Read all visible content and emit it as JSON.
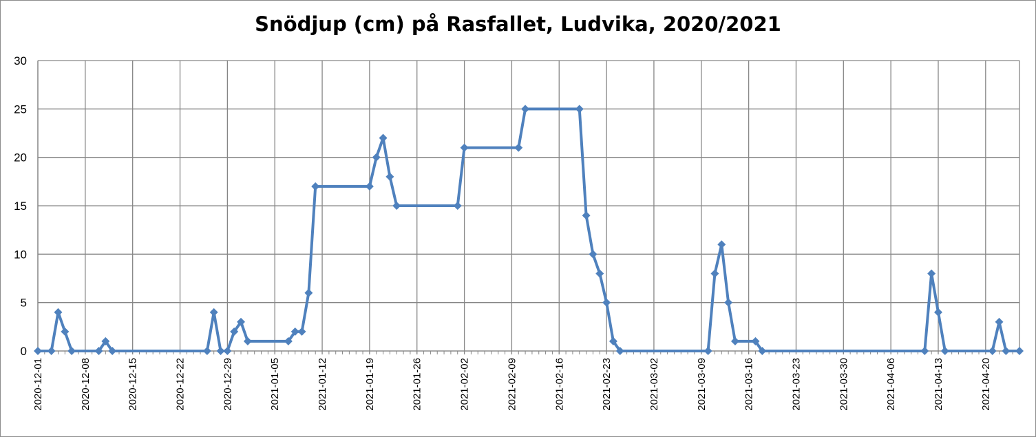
{
  "chart_data": {
    "type": "line",
    "title": "Snödjup (cm) på Rasfallet, Ludvika, 2020/2021",
    "xlabel": "",
    "ylabel": "",
    "ylim": [
      0,
      30
    ],
    "yticks": [
      0,
      5,
      10,
      15,
      20,
      25,
      30
    ],
    "xlim": [
      "2020-12-01",
      "2021-04-25"
    ],
    "xtick_labels": [
      "2020-12-01",
      "2020-12-08",
      "2020-12-15",
      "2020-12-22",
      "2020-12-29",
      "2021-01-05",
      "2021-01-12",
      "2021-01-19",
      "2021-01-26",
      "2021-02-02",
      "2021-02-09",
      "2021-02-16",
      "2021-02-23",
      "2021-03-02",
      "2021-03-09",
      "2021-03-16",
      "2021-03-23",
      "2021-03-30",
      "2021-04-06",
      "2021-04-13",
      "2021-04-20"
    ],
    "grid": true,
    "legend": "none",
    "series_color": "#4F81BD",
    "points": [
      [
        "2020-12-01",
        0
      ],
      [
        "2020-12-03",
        0
      ],
      [
        "2020-12-04",
        4
      ],
      [
        "2020-12-05",
        2
      ],
      [
        "2020-12-06",
        0
      ],
      [
        "2020-12-10",
        0
      ],
      [
        "2020-12-11",
        1
      ],
      [
        "2020-12-12",
        0
      ],
      [
        "2020-12-26",
        0
      ],
      [
        "2020-12-27",
        4
      ],
      [
        "2020-12-28",
        0
      ],
      [
        "2020-12-29",
        0
      ],
      [
        "2020-12-30",
        2
      ],
      [
        "2020-12-31",
        3
      ],
      [
        "2021-01-01",
        1
      ],
      [
        "2021-01-07",
        1
      ],
      [
        "2021-01-08",
        2
      ],
      [
        "2021-01-09",
        2
      ],
      [
        "2021-01-10",
        6
      ],
      [
        "2021-01-11",
        17
      ],
      [
        "2021-01-19",
        17
      ],
      [
        "2021-01-20",
        20
      ],
      [
        "2021-01-21",
        22
      ],
      [
        "2021-01-22",
        18
      ],
      [
        "2021-01-23",
        15
      ],
      [
        "2021-02-01",
        15
      ],
      [
        "2021-02-02",
        21
      ],
      [
        "2021-02-10",
        21
      ],
      [
        "2021-02-11",
        25
      ],
      [
        "2021-02-19",
        25
      ],
      [
        "2021-02-20",
        14
      ],
      [
        "2021-02-21",
        10
      ],
      [
        "2021-02-22",
        8
      ],
      [
        "2021-02-23",
        5
      ],
      [
        "2021-02-24",
        1
      ],
      [
        "2021-02-25",
        0
      ],
      [
        "2021-03-10",
        0
      ],
      [
        "2021-03-11",
        8
      ],
      [
        "2021-03-12",
        11
      ],
      [
        "2021-03-13",
        5
      ],
      [
        "2021-03-14",
        1
      ],
      [
        "2021-03-17",
        1
      ],
      [
        "2021-03-18",
        0
      ],
      [
        "2021-04-11",
        0
      ],
      [
        "2021-04-12",
        8
      ],
      [
        "2021-04-13",
        4
      ],
      [
        "2021-04-14",
        0
      ],
      [
        "2021-04-21",
        0
      ],
      [
        "2021-04-22",
        3
      ],
      [
        "2021-04-23",
        0
      ],
      [
        "2021-04-25",
        0
      ]
    ]
  }
}
